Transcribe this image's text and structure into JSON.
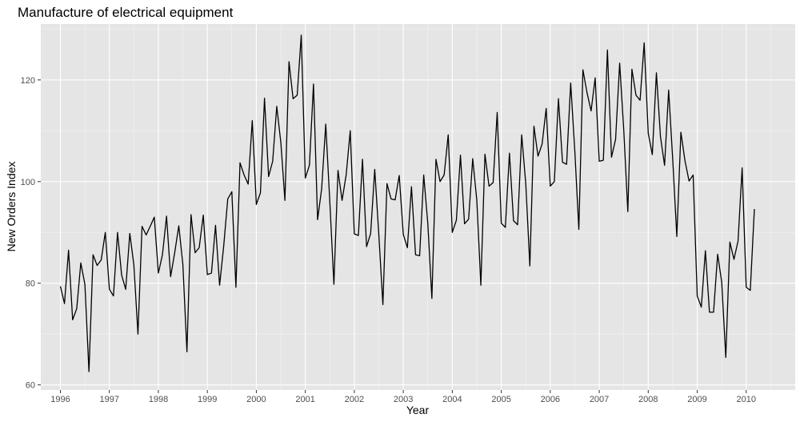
{
  "chart_data": {
    "type": "line",
    "title": "Manufacture of electrical equipment",
    "xlabel": "Year",
    "ylabel": "New Orders Index",
    "xlim": [
      1995.6,
      2011.0
    ],
    "ylim": [
      59,
      131
    ],
    "x_ticks": [
      1996,
      1997,
      1998,
      1999,
      2000,
      2001,
      2002,
      2003,
      2004,
      2005,
      2006,
      2007,
      2008,
      2009,
      2010
    ],
    "y_ticks": [
      60,
      80,
      100,
      120
    ],
    "grid": true,
    "start_year": 1996,
    "start_month": 1,
    "series": [
      {
        "values": [
          79.4,
          76.0,
          86.5,
          72.8,
          75.0,
          84.0,
          79.8,
          62.6,
          85.6,
          83.5,
          84.6,
          90.0,
          78.8,
          77.5,
          90.0,
          81.6,
          78.8,
          89.8,
          83.6,
          70.0,
          91.2,
          89.5,
          91.2,
          93.0,
          82.0,
          85.6,
          93.2,
          81.3,
          86.0,
          91.3,
          83.7,
          66.5,
          93.5,
          86.0,
          87.0,
          93.4,
          81.7,
          82.0,
          91.4,
          79.6,
          87.3,
          96.6,
          98.0,
          79.2,
          103.7,
          101.3,
          99.5,
          112.0,
          95.5,
          97.8,
          116.4,
          101.0,
          104.0,
          114.8,
          107.7,
          96.3,
          123.6,
          116.3,
          117.0,
          128.8,
          100.7,
          103.2,
          119.2,
          92.5,
          98.6,
          111.3,
          96.0,
          79.8,
          102.2,
          96.3,
          101.3,
          110.0,
          89.7,
          89.4,
          104.4,
          87.2,
          89.8,
          102.4,
          89.6,
          75.8,
          99.6,
          96.6,
          96.4,
          101.2,
          89.6,
          87.0,
          99.0,
          85.6,
          85.4,
          101.3,
          91.8,
          77.0,
          104.4,
          100.0,
          101.3,
          109.2,
          90.0,
          92.4,
          105.2,
          91.7,
          92.6,
          104.5,
          96.4,
          79.6,
          105.4,
          99.1,
          99.8,
          113.6,
          91.8,
          91.0,
          105.6,
          92.3,
          91.5,
          109.2,
          99.6,
          83.4,
          110.9,
          105.0,
          107.4,
          114.4,
          99.1,
          100.0,
          116.3,
          103.8,
          103.4,
          119.4,
          106.2,
          90.6,
          122.0,
          117.5,
          113.9,
          120.4,
          104.0,
          104.2,
          125.9,
          104.8,
          108.3,
          123.3,
          110.2,
          94.1,
          122.1,
          117.0,
          116.0,
          127.3,
          109.5,
          105.3,
          121.4,
          108.8,
          103.2,
          118.0,
          104.3,
          89.2,
          109.7,
          104.1,
          100.1,
          101.3,
          77.5,
          75.3,
          86.4,
          74.3,
          74.3,
          85.7,
          80.2,
          65.4,
          88.1,
          84.7,
          88.3,
          102.7,
          79.2,
          78.6,
          94.6
        ]
      }
    ]
  }
}
